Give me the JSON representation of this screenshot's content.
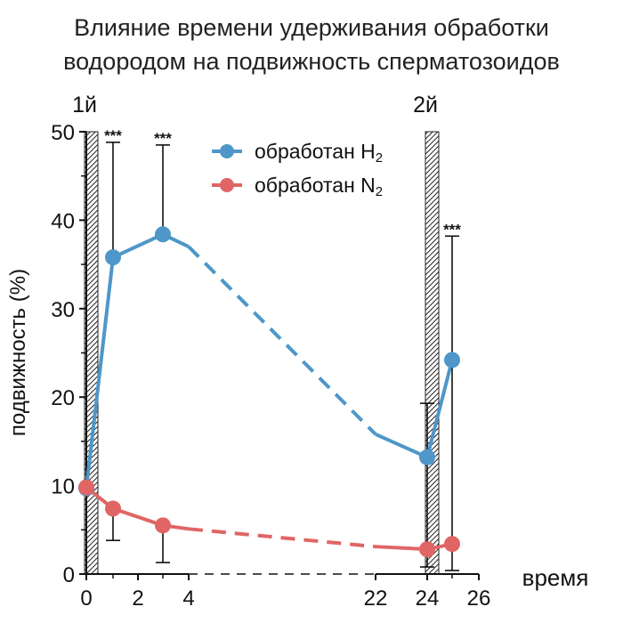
{
  "title_lines": [
    "Влияние времени удерживания обработки",
    "водородом на подвижность сперматозоидов"
  ],
  "chart_data": {
    "type": "line",
    "title": "Влияние времени удерживания обработки водородом на подвижность сперматозоидов",
    "xlabel": "время",
    "ylabel": "подвижность (%)",
    "x_ticks": [
      "0",
      "2",
      "4",
      "22",
      "24",
      "26"
    ],
    "y_ticks": [
      "0",
      "10",
      "20",
      "30",
      "40",
      "50"
    ],
    "ylim": [
      0,
      50
    ],
    "markers": [
      {
        "label": "1й",
        "at": "0"
      },
      {
        "label": "2й",
        "at": "24"
      }
    ],
    "significance": "***",
    "legend": {
      "position": "top-right",
      "entries": [
        {
          "text": "обработан H",
          "sub": "2",
          "color": "#4e97c8"
        },
        {
          "text": "обработан N",
          "sub": "2",
          "color": "#e06565"
        }
      ]
    },
    "series": [
      {
        "name": "обработан H2",
        "color": "#4e97c8",
        "points": [
          {
            "x": "0",
            "y": 9.7
          },
          {
            "x": "1",
            "y": 35.8,
            "err_up": 48.8,
            "err_down": null,
            "sig": true
          },
          {
            "x": "3",
            "y": 38.4,
            "err_up": 48.5,
            "err_down": null,
            "sig": true
          },
          {
            "x": "24",
            "y": 13.2,
            "err_up": 19.3,
            "err_down": 0.8
          },
          {
            "x": "25",
            "y": 24.2,
            "err_up": 38.2,
            "err_down": 0.4,
            "sig": true
          }
        ],
        "line": [
          {
            "x": "0",
            "y": 9.7
          },
          {
            "x": "1",
            "y": 35.8
          },
          {
            "x": "3",
            "y": 38.4
          },
          {
            "x": "4",
            "y": 37.0
          }
        ],
        "dashed": [
          {
            "x": "4",
            "y": 37.0
          },
          {
            "x": "22",
            "y": 15.8
          }
        ],
        "line2": [
          {
            "x": "22",
            "y": 15.8
          },
          {
            "x": "24",
            "y": 13.2
          }
        ],
        "line3": [
          {
            "x": "24",
            "y": 13.2
          },
          {
            "x": "25",
            "y": 24.2
          }
        ]
      },
      {
        "name": "обработан N2",
        "color": "#e06565",
        "points": [
          {
            "x": "0",
            "y": 9.8
          },
          {
            "x": "1",
            "y": 7.4,
            "err_up": null,
            "err_down": 3.8
          },
          {
            "x": "3",
            "y": 5.5,
            "err_up": null,
            "err_down": 1.3
          },
          {
            "x": "24",
            "y": 2.8
          },
          {
            "x": "25",
            "y": 3.4
          }
        ],
        "line": [
          {
            "x": "0",
            "y": 9.8
          },
          {
            "x": "1",
            "y": 7.4
          },
          {
            "x": "3",
            "y": 5.5
          },
          {
            "x": "4",
            "y": 5.1
          }
        ],
        "dashed": [
          {
            "x": "4",
            "y": 5.1
          },
          {
            "x": "22",
            "y": 3.1
          }
        ],
        "line2": [
          {
            "x": "22",
            "y": 3.1
          },
          {
            "x": "24",
            "y": 2.8
          }
        ],
        "line3": [
          {
            "x": "24",
            "y": 2.8
          },
          {
            "x": "25",
            "y": 3.4
          }
        ]
      }
    ]
  }
}
